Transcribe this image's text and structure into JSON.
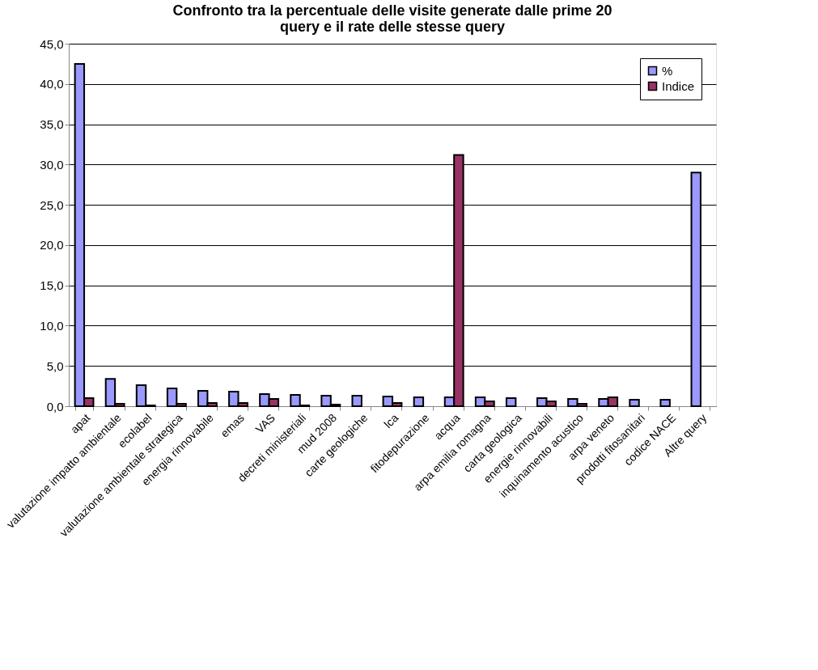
{
  "chart_data": {
    "type": "bar",
    "title": [
      "Confronto tra la percentuale delle visite generate dalle prime 20",
      "query e il rate delle stesse query"
    ],
    "categories": [
      "apat",
      "valutazione impatto ambientale",
      "ecolabel",
      "valutazione ambientale strategica",
      "energia rinnovabile",
      "emas",
      "VAS",
      "decreti ministeriali",
      "mud 2008",
      "carte geologiche",
      "lca",
      "fitodepurazione",
      "acqua",
      "arpa emilia romagna",
      "carta geologica",
      "energie rinnovabili",
      "inquinamento acustico",
      "arpa veneto",
      "prodotti fitosanitari",
      "codice NACE",
      "Altre query"
    ],
    "series": [
      {
        "name": "%",
        "color": "#9999ff",
        "values": [
          42.5,
          3.4,
          2.6,
          2.2,
          1.9,
          1.8,
          1.5,
          1.4,
          1.3,
          1.3,
          1.2,
          1.1,
          1.1,
          1.1,
          1.0,
          1.0,
          0.9,
          0.9,
          0.8,
          0.8,
          29.0
        ]
      },
      {
        "name": "Indice",
        "color": "#993366",
        "values": [
          1.0,
          0.3,
          0.1,
          0.3,
          0.4,
          0.4,
          0.9,
          0.1,
          0.2,
          null,
          0.4,
          null,
          31.2,
          0.6,
          null,
          0.6,
          0.3,
          1.1,
          null,
          null,
          null
        ]
      }
    ],
    "ylim": [
      0,
      45
    ],
    "yticks": [
      {
        "value": 0,
        "label": "0,0"
      },
      {
        "value": 5,
        "label": "5,0"
      },
      {
        "value": 10,
        "label": "10,0"
      },
      {
        "value": 15,
        "label": "15,0"
      },
      {
        "value": 20,
        "label": "20,0"
      },
      {
        "value": 25,
        "label": "25,0"
      },
      {
        "value": 30,
        "label": "30,0"
      },
      {
        "value": 35,
        "label": "35,0"
      },
      {
        "value": 40,
        "label": "40,0"
      },
      {
        "value": 45,
        "label": "45,0"
      }
    ],
    "grid": "y",
    "legend": "top right"
  }
}
